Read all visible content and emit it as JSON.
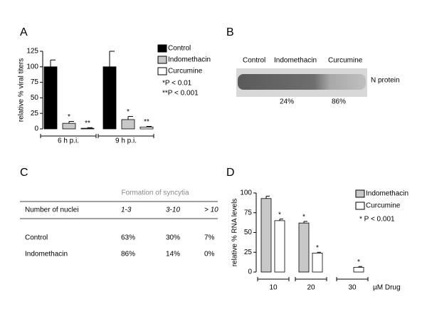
{
  "chart_data": [
    {
      "type": "bar",
      "panel": "A",
      "ylabel": "relative % viral titers",
      "categories": [
        "6 h p.i.",
        "9 h p.i."
      ],
      "series": [
        {
          "name": "Control",
          "color": "#000000",
          "values": [
            100,
            100
          ],
          "errors": [
            11,
            25
          ],
          "markers": [
            null,
            null
          ]
        },
        {
          "name": "Indomethacin",
          "color": "#c8c8c8",
          "values": [
            9,
            15
          ],
          "errors": [
            3,
            5
          ],
          "markers": [
            "*",
            "*"
          ]
        },
        {
          "name": "Curcumine",
          "color": "#ffffff",
          "values": [
            1,
            3
          ],
          "errors": [
            1,
            1
          ],
          "markers": [
            "**",
            "**"
          ]
        }
      ],
      "ylim": [
        0,
        125
      ],
      "yticks": [
        0,
        25,
        50,
        75,
        100,
        125
      ],
      "notes": [
        "*P < 0.01",
        "**P < 0.001"
      ]
    },
    {
      "type": "bar",
      "panel": "D",
      "ylabel": "relative % RNA levels",
      "xlabel": "µM Drug",
      "categories": [
        "10",
        "20",
        "30"
      ],
      "series": [
        {
          "name": "Indomethacin",
          "color": "#c8c8c8",
          "values": [
            93,
            62,
            null
          ],
          "errors": [
            3,
            2,
            null
          ],
          "markers": [
            null,
            "*",
            null
          ]
        },
        {
          "name": "Curcumine",
          "color": "#ffffff",
          "values": [
            65,
            24,
            6
          ],
          "errors": [
            2,
            1,
            1
          ],
          "markers": [
            "*",
            "*",
            "*"
          ]
        }
      ],
      "ylim": [
        0,
        100
      ],
      "yticks": [
        0,
        25,
        50,
        75,
        100
      ],
      "notes": [
        "* P < 0.001"
      ]
    }
  ],
  "panel_b": {
    "panel": "B",
    "lanes": [
      "Control",
      "Indomethacin",
      "Curcumine"
    ],
    "band": "N protein",
    "reductions": [
      "24%",
      "86%"
    ]
  },
  "panel_c": {
    "panel": "C",
    "title": "Formation of syncytia",
    "header": [
      "Number of nuclei",
      "1-3",
      "3-10",
      "> 10"
    ],
    "rows": [
      [
        "Control",
        "63%",
        "30%",
        "7%"
      ],
      [
        "Indomethacin",
        "86%",
        "14%",
        "0%"
      ]
    ]
  }
}
